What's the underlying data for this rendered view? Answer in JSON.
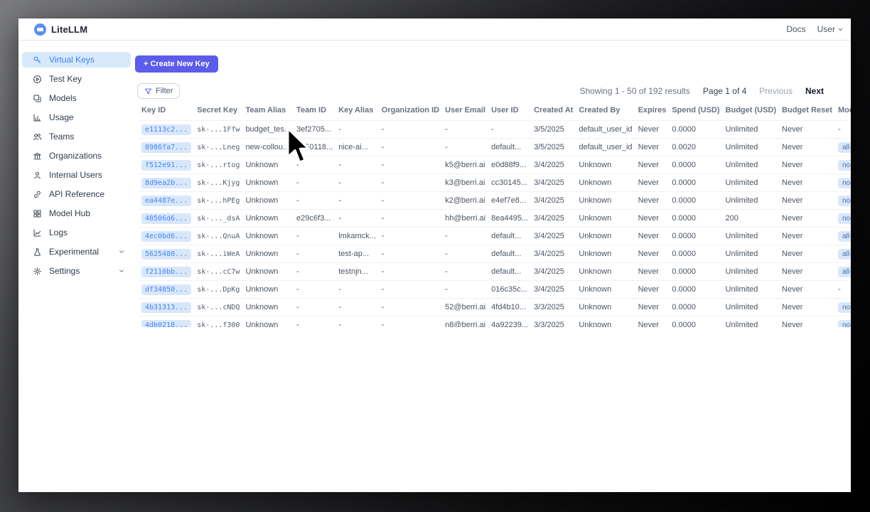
{
  "colors": {
    "accent": "#5b5ceb",
    "active_item_bg": "#d8e9fc",
    "active_item_text": "#3b82f6",
    "chip_bg": "#d9e7fb",
    "chip_text": "#4287f5",
    "badge_text": "#456ea8"
  },
  "topnav": {
    "brand": "LiteLLM",
    "docs_link": "Docs",
    "user_menu": "User"
  },
  "sidebar": {
    "items": [
      {
        "label": "Virtual Keys",
        "icon": "key-icon",
        "active": true,
        "chevron": false
      },
      {
        "label": "Test Key",
        "icon": "play-circle-icon",
        "active": false,
        "chevron": false
      },
      {
        "label": "Models",
        "icon": "models-icon",
        "active": false,
        "chevron": false
      },
      {
        "label": "Usage",
        "icon": "bar-chart-icon",
        "active": false,
        "chevron": false
      },
      {
        "label": "Teams",
        "icon": "teams-icon",
        "active": false,
        "chevron": false
      },
      {
        "label": "Organizations",
        "icon": "bank-icon",
        "active": false,
        "chevron": false
      },
      {
        "label": "Internal Users",
        "icon": "user-icon",
        "active": false,
        "chevron": false
      },
      {
        "label": "API Reference",
        "icon": "link-icon",
        "active": false,
        "chevron": false
      },
      {
        "label": "Model Hub",
        "icon": "grid-icon",
        "active": false,
        "chevron": false
      },
      {
        "label": "Logs",
        "icon": "line-chart-icon",
        "active": false,
        "chevron": false
      },
      {
        "label": "Experimental",
        "icon": "flask-icon",
        "active": false,
        "chevron": true
      },
      {
        "label": "Settings",
        "icon": "gear-icon",
        "active": false,
        "chevron": true
      }
    ]
  },
  "toolbar": {
    "create_button": "+ Create New Key",
    "filter_button": "Filter"
  },
  "pagination": {
    "showing": "Showing 1 - 50 of 192 results",
    "page": "Page 1 of 4",
    "previous": "Previous",
    "next": "Next"
  },
  "table": {
    "columns": [
      "Key ID",
      "Secret Key",
      "Team Alias",
      "Team ID",
      "Key Alias",
      "Organization ID",
      "User Email",
      "User ID",
      "Created At",
      "Created By",
      "Expires",
      "Spend (USD)",
      "Budget (USD)",
      "Budget Reset",
      "Models"
    ],
    "rows": [
      [
        "e1113c2...",
        "sk-...1Ffw",
        "budget_tes...",
        "3ef2705...",
        "-",
        "-",
        "-",
        "-",
        "3/5/2025",
        "default_user_id",
        "Never",
        "0.0000",
        "Unlimited",
        "Never",
        "-"
      ],
      [
        "8986fa7...",
        "sk-...Lneg",
        "new-collou...",
        "a550118...",
        "nice-ai...",
        "-",
        "-",
        "default...",
        "3/5/2025",
        "default_user_id",
        "Never",
        "0.0020",
        "Unlimited",
        "Never",
        "all-team-m"
      ],
      [
        "f512e91...",
        "sk-...rtog",
        "Unknown",
        "-",
        "-",
        "-",
        "k5@berri.ai",
        "e0d88f9...",
        "3/4/2025",
        "Unknown",
        "Never",
        "0.0000",
        "Unlimited",
        "Never",
        "no-default"
      ],
      [
        "8d9ea2b...",
        "sk-...Kjyg",
        "Unknown",
        "-",
        "-",
        "-",
        "k3@berri.ai",
        "cc30145...",
        "3/4/2025",
        "Unknown",
        "Never",
        "0.0000",
        "Unlimited",
        "Never",
        "no-default"
      ],
      [
        "ea4487e...",
        "sk-...hPEg",
        "Unknown",
        "-",
        "-",
        "-",
        "k2@berri.ai",
        "e4ef7e8...",
        "3/4/2025",
        "Unknown",
        "Never",
        "0.0000",
        "Unlimited",
        "Never",
        "no-default"
      ],
      [
        "48506d6...",
        "sk-..._dsA",
        "Unknown",
        "e29c6f3...",
        "-",
        "-",
        "hh@berri.ai",
        "8ea4495...",
        "3/4/2025",
        "Unknown",
        "Never",
        "0.0000",
        "200",
        "Never",
        "no-default"
      ],
      [
        "4ec0bd6...",
        "sk-...QnuA",
        "Unknown",
        "-",
        "lmkamck...",
        "-",
        "-",
        "default...",
        "3/4/2025",
        "Unknown",
        "Never",
        "0.0000",
        "Unlimited",
        "Never",
        "all-team-m"
      ],
      [
        "5625480...",
        "sk-...iWeA",
        "Unknown",
        "-",
        "test-ap...",
        "-",
        "-",
        "default...",
        "3/4/2025",
        "Unknown",
        "Never",
        "0.0000",
        "Unlimited",
        "Never",
        "all-team-m"
      ],
      [
        "f2110bb...",
        "sk-...cC7w",
        "Unknown",
        "-",
        "testnjn...",
        "-",
        "-",
        "default...",
        "3/4/2025",
        "Unknown",
        "Never",
        "0.0000",
        "Unlimited",
        "Never",
        "all-team-m"
      ],
      [
        "df34850...",
        "sk-...DpKg",
        "Unknown",
        "-",
        "-",
        "-",
        "-",
        "016c35c...",
        "3/4/2025",
        "Unknown",
        "Never",
        "0.0000",
        "Unlimited",
        "Never",
        "-"
      ],
      [
        "4b31313...",
        "sk-...cNDQ",
        "Unknown",
        "-",
        "-",
        "-",
        "52@berri.ai",
        "4fd4b10...",
        "3/3/2025",
        "Unknown",
        "Never",
        "0.0000",
        "Unlimited",
        "Never",
        "no-default"
      ],
      [
        "4db0218...",
        "sk-...f300",
        "Unknown",
        "-",
        "-",
        "-",
        "n8@berri.ai",
        "4a92239...",
        "3/3/2025",
        "Unknown",
        "Never",
        "0.0000",
        "Unlimited",
        "Never",
        "no-default"
      ]
    ]
  }
}
